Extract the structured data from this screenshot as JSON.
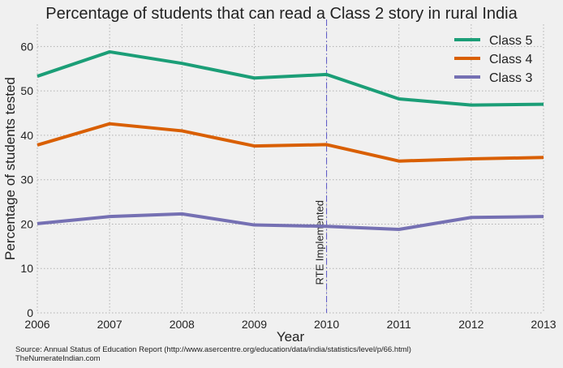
{
  "chart_data": {
    "type": "line",
    "title": "Percentage of students that can read a Class 2 story in rural India",
    "xlabel": "Year",
    "ylabel": "Percentage of students tested",
    "x": [
      2006,
      2007,
      2008,
      2009,
      2010,
      2011,
      2012,
      2013
    ],
    "xlim": [
      2006,
      2013
    ],
    "ylim": [
      0,
      65
    ],
    "yticks": [
      0,
      10,
      20,
      30,
      40,
      50,
      60
    ],
    "grid": true,
    "legend_position": "top-right",
    "series": [
      {
        "name": "Class 5",
        "color": "#1b9e77",
        "values": [
          53.3,
          58.8,
          56.2,
          52.9,
          53.7,
          48.2,
          46.8,
          47.0
        ]
      },
      {
        "name": "Class 4",
        "color": "#d95f02",
        "values": [
          37.8,
          42.6,
          41.0,
          37.6,
          37.9,
          34.2,
          34.7,
          35.0
        ]
      },
      {
        "name": "Class 3",
        "color": "#7570b3",
        "values": [
          20.1,
          21.7,
          22.3,
          19.8,
          19.5,
          18.8,
          21.5,
          21.7
        ]
      }
    ],
    "annotations": [
      {
        "x": 2010,
        "text": "RTE Implemented",
        "line_color": "#5a56c8",
        "line_style": "dash-dot"
      }
    ]
  },
  "footer": {
    "source": "Source: Annual Status of Education Report (http://www.asercentre.org/education/data/india/statistics/level/p/66.html)",
    "credit": "TheNumerateIndian.com"
  }
}
